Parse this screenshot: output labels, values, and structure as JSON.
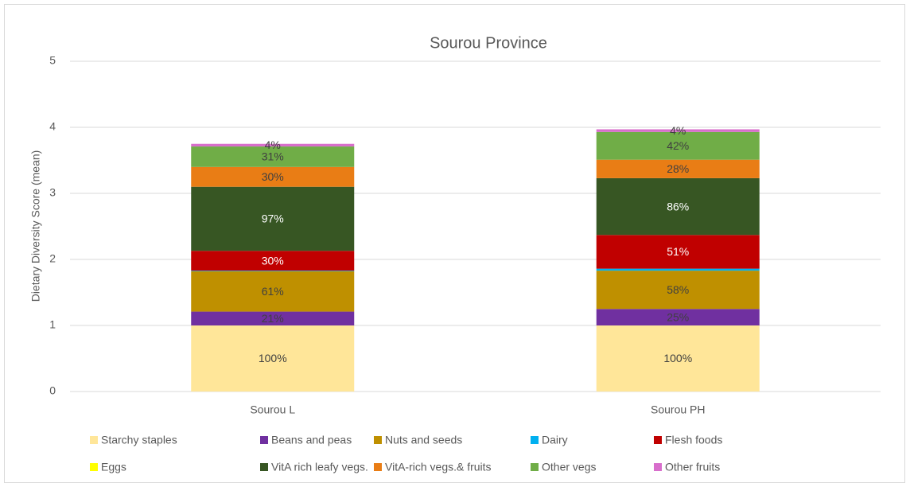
{
  "chart_data": {
    "type": "stacked_bar",
    "title": "Sourou Province",
    "y_label": "Dietary Diversity Score (mean)",
    "categories": [
      "Sourou L",
      "Sourou PH"
    ],
    "ylim": [
      0,
      5
    ],
    "yticks": [
      0,
      1,
      2,
      3,
      4,
      5
    ],
    "grid": true,
    "legend": "bottom",
    "series": [
      {
        "name": "Starchy staples",
        "color": "#FFE699",
        "values": [
          1.0,
          1.0
        ],
        "value_labels": [
          "100%",
          "100%"
        ]
      },
      {
        "name": "Beans and peas",
        "color": "#7030A0",
        "values": [
          0.21,
          0.25
        ],
        "value_labels": [
          "21%",
          "25%"
        ]
      },
      {
        "name": "Nuts and seeds",
        "color": "#BF9000",
        "values": [
          0.61,
          0.58
        ],
        "value_labels": [
          "61%",
          "58%"
        ]
      },
      {
        "name": "Dairy",
        "color": "#00B0F0",
        "values": [
          0.01,
          0.03
        ],
        "value_labels": [
          null,
          null
        ]
      },
      {
        "name": "Flesh foods",
        "color": "#C00000",
        "values": [
          0.3,
          0.51
        ],
        "value_labels": [
          "30%",
          "51%"
        ]
      },
      {
        "name": "Eggs",
        "color": "#FFFF00",
        "values": [
          0,
          0
        ],
        "value_labels": [
          null,
          null
        ]
      },
      {
        "name": "VitA rich leafy vegs.",
        "color": "#375623",
        "values": [
          0.97,
          0.86
        ],
        "value_labels": [
          "97%",
          "86%"
        ]
      },
      {
        "name": "VitA-rich vegs.& fruits",
        "color": "#E97D15",
        "values": [
          0.3,
          0.28
        ],
        "value_labels": [
          "30%",
          "28%"
        ]
      },
      {
        "name": "Other vegs",
        "color": "#70AD47",
        "values": [
          0.31,
          0.42
        ],
        "value_labels": [
          "31%",
          "42%"
        ]
      },
      {
        "name": "Other fruits",
        "color": "#D86ECC",
        "values": [
          0.04,
          0.04
        ],
        "value_labels": [
          "4%",
          "4%"
        ]
      }
    ]
  }
}
